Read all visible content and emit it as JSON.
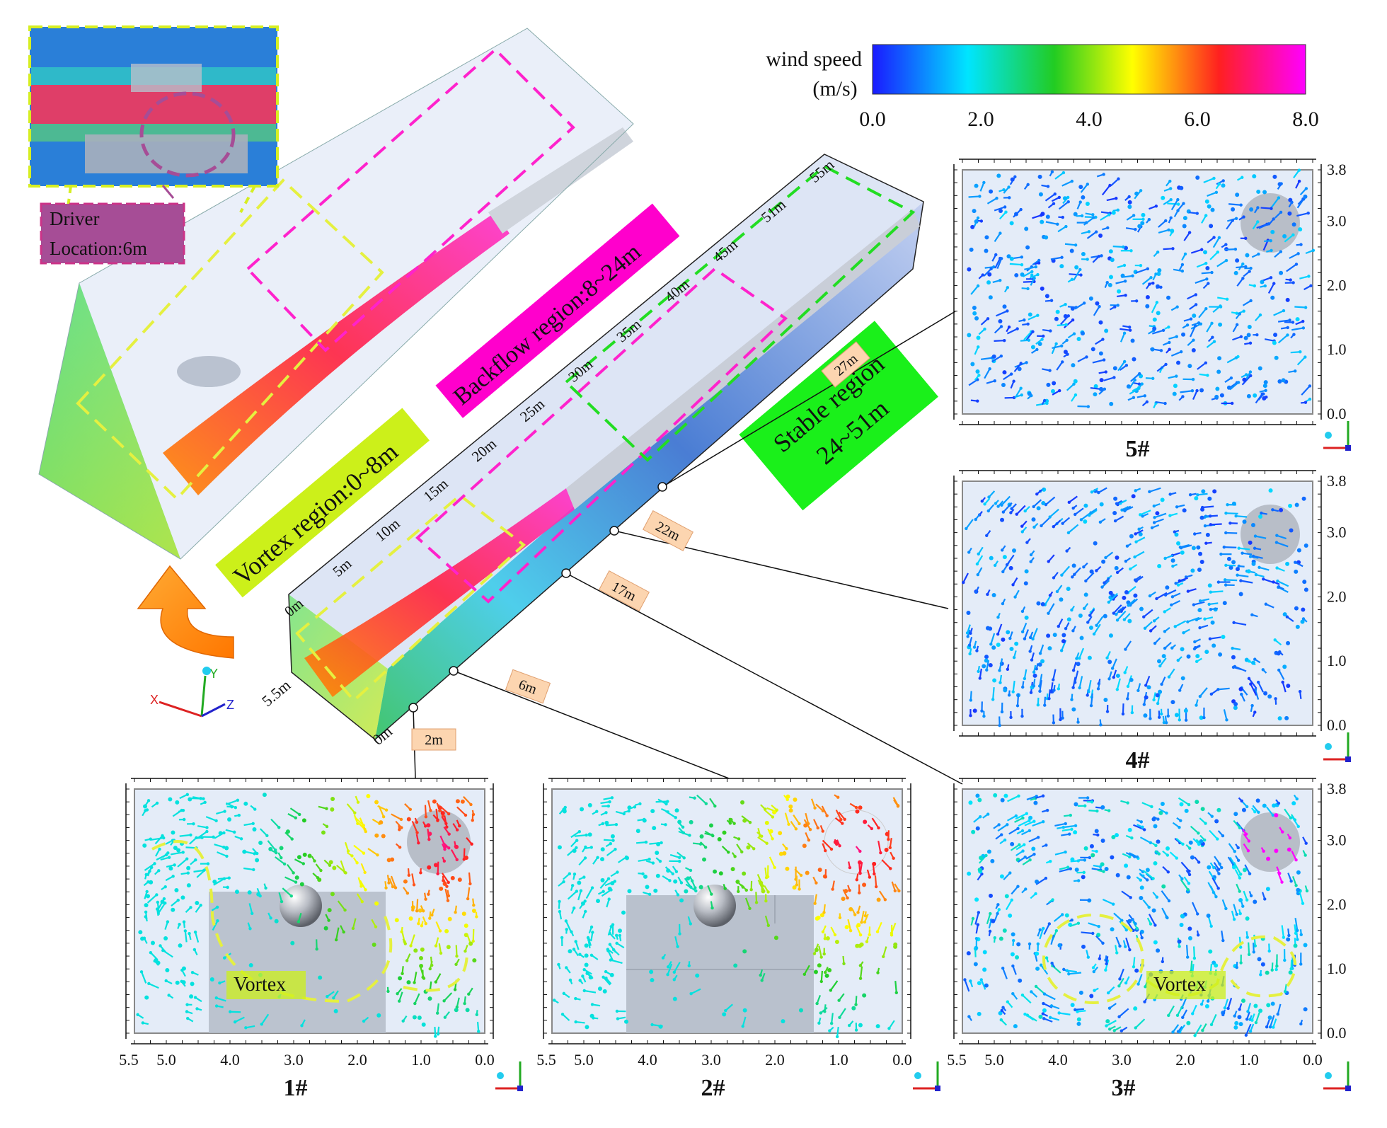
{
  "colorbar": {
    "title_line1": "wind speed",
    "title_line2": "(m/s)",
    "ticks": [
      "0.0",
      "2.0",
      "4.0",
      "6.0",
      "8.0"
    ],
    "colors": [
      "#1a1aff",
      "#00e5ff",
      "#22cc22",
      "#ffff00",
      "#ff2020",
      "#ff00ff"
    ]
  },
  "overview": {
    "driver_line1": "Driver",
    "driver_line2": "Location:6m",
    "driver_color": "#a64d96"
  },
  "tunnel": {
    "distance_ticks": [
      "0m",
      "5m",
      "10m",
      "15m",
      "20m",
      "25m",
      "30m",
      "35m",
      "40m",
      "45m",
      "51m",
      "55m"
    ],
    "depth_labels": [
      "0m",
      "5.5m"
    ],
    "section_tags": [
      "2m",
      "6m",
      "17m",
      "22m",
      "27m"
    ]
  },
  "regions": {
    "vortex": {
      "label": "Vortex region:0~8m",
      "color": "#ccf01a"
    },
    "backflow": {
      "label": "Backflow region:8~24m",
      "color": "#ff00cc"
    },
    "stable_line1": "Stable region",
    "stable_line2": "24~51m",
    "stable_color": "#1af01a"
  },
  "axes": {
    "x_ticks": [
      "5.5",
      "5.0",
      "4.0",
      "3.0",
      "2.0",
      "1.0",
      "0.0"
    ],
    "y_ticks": [
      "0.0",
      "1.0",
      "2.0",
      "3.0",
      "3.8"
    ],
    "axis_letters": {
      "x": "X",
      "y": "Y",
      "z": "Z"
    }
  },
  "sections": [
    {
      "id": "1#",
      "vortex_label": "Vortex"
    },
    {
      "id": "2#"
    },
    {
      "id": "3#",
      "vortex_label": "Vortex"
    },
    {
      "id": "4#"
    },
    {
      "id": "5#"
    }
  ]
}
